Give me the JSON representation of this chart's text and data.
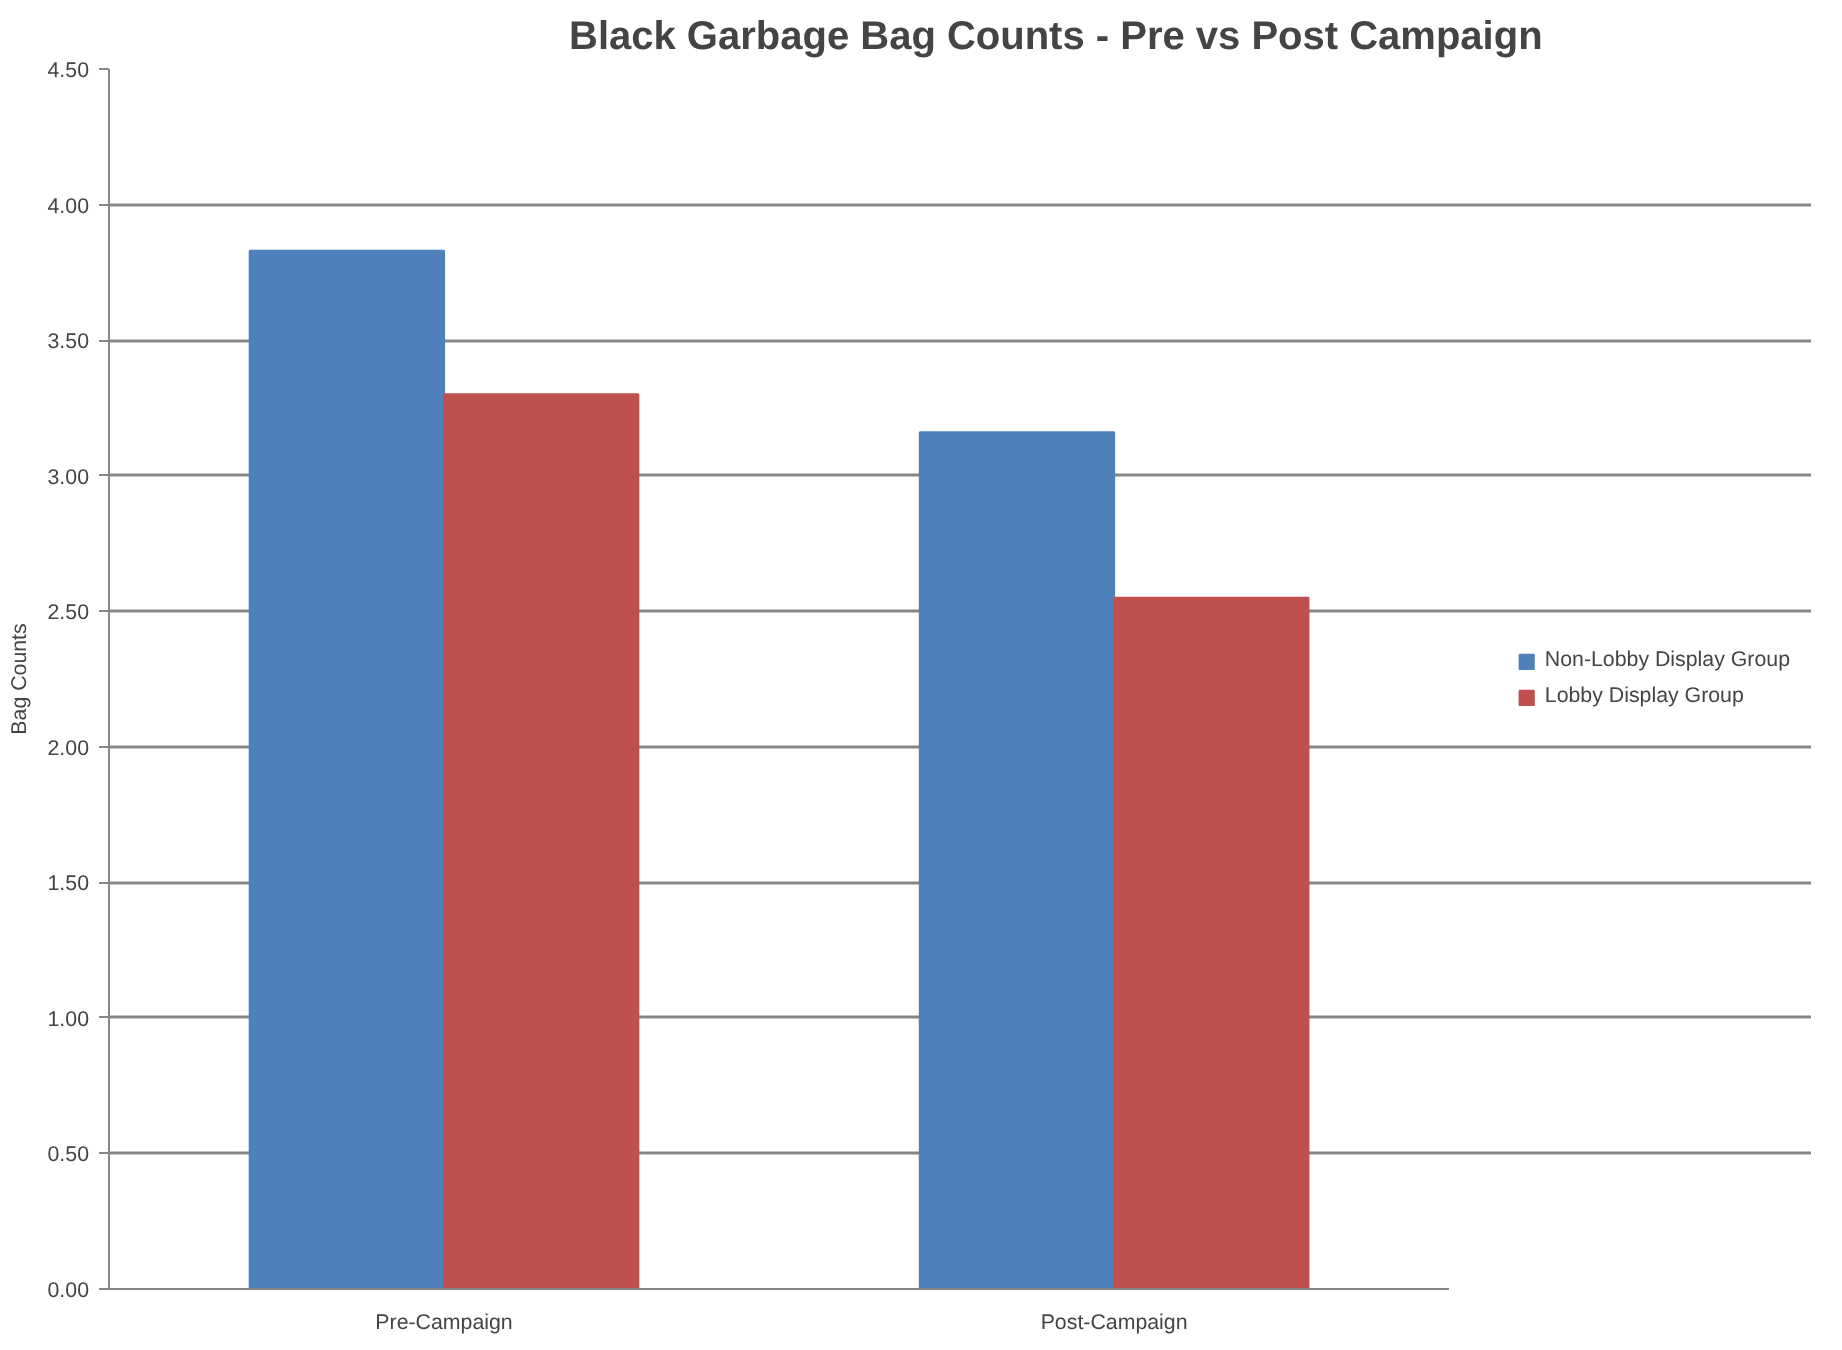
{
  "chart_data": {
    "type": "bar",
    "title": "Black Garbage Bag Counts - Pre vs Post Campaign",
    "ylabel": "Bag Counts",
    "categories": [
      "Pre-Campaign",
      "Post-Campaign"
    ],
    "series": [
      {
        "name": "Non-Lobby Display Group",
        "color": "#4f81bd",
        "values": [
          3.83,
          3.16
        ]
      },
      {
        "name": "Lobby Display Group",
        "color": "#c0504d",
        "values": [
          3.3,
          2.55
        ]
      }
    ],
    "ylim": [
      0,
      4.5
    ],
    "yticks": [
      {
        "value": 0,
        "label": "0.00"
      },
      {
        "value": 0.5,
        "label": "0.50"
      },
      {
        "value": 1,
        "label": "1.00"
      },
      {
        "value": 1.5,
        "label": "1.50"
      },
      {
        "value": 2,
        "label": "2.00"
      },
      {
        "value": 2.5,
        "label": "2.50"
      },
      {
        "value": 3,
        "label": "3.00"
      },
      {
        "value": 3.5,
        "label": "3.50"
      },
      {
        "value": 4,
        "label": "4.00"
      },
      {
        "value": 4.5,
        "label": "4.50"
      }
    ],
    "grid": "y",
    "legend": "right"
  }
}
